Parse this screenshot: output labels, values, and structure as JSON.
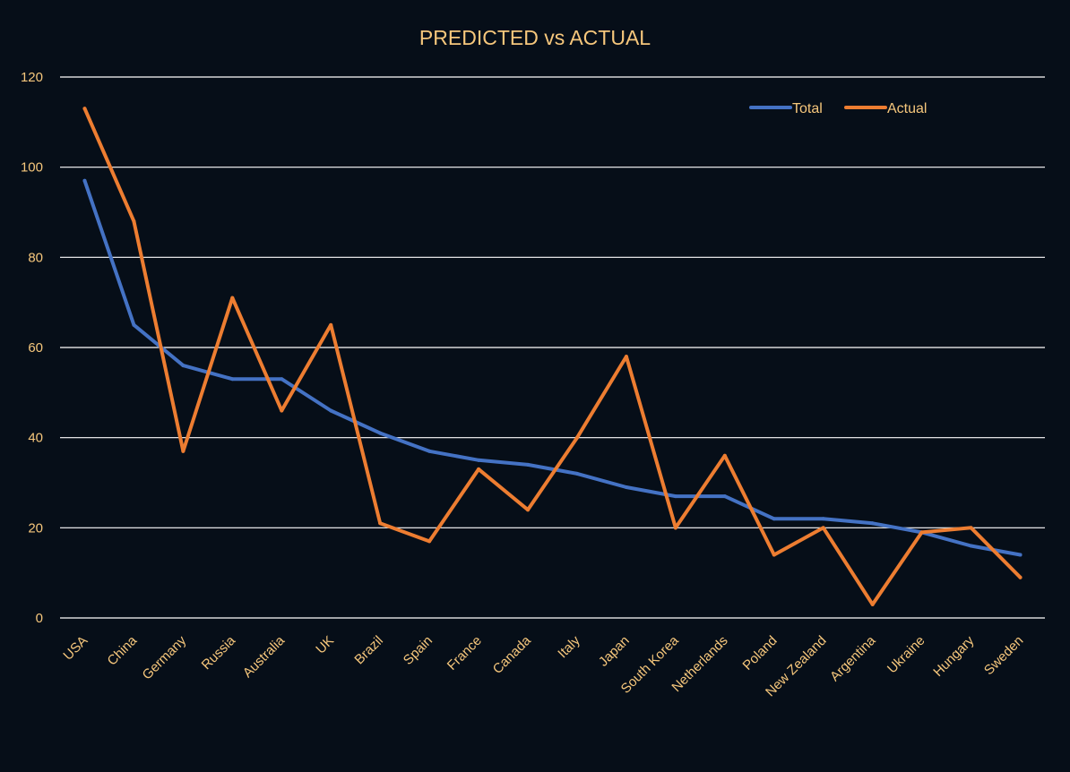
{
  "colors": {
    "background": "#060e18",
    "text": "#f6c77c",
    "gridline": "#ffffff",
    "total": "#4472c4",
    "actual": "#ed7d31"
  },
  "chart_data": {
    "type": "line",
    "title": "PREDICTED vs ACTUAL",
    "xlabel": "",
    "ylabel": "",
    "ylim": [
      0,
      120
    ],
    "yticks": [
      "0",
      "20",
      "40",
      "60",
      "80",
      "100",
      "120"
    ],
    "grid": true,
    "legend_position": "top-right",
    "categories": [
      "USA",
      "China",
      "Germany",
      "Russia",
      "Australia",
      "UK",
      "Brazil",
      "Spain",
      "France",
      "Canada",
      "Italy",
      "Japan",
      "South Korea",
      "Netherlands",
      "Poland",
      "New Zealand",
      "Argentina",
      "Ukraine",
      "Hungary",
      "Sweden"
    ],
    "series": [
      {
        "name": "Total",
        "color": "#4472c4",
        "values": [
          97,
          65,
          56,
          53,
          53,
          46,
          41,
          37,
          35,
          34,
          32,
          29,
          27,
          27,
          22,
          22,
          21,
          19,
          16,
          14
        ]
      },
      {
        "name": "Actual",
        "color": "#ed7d31",
        "values": [
          113,
          88,
          37,
          71,
          46,
          65,
          21,
          17,
          33,
          24,
          40,
          58,
          20,
          36,
          14,
          20,
          3,
          19,
          20,
          9
        ]
      }
    ]
  }
}
